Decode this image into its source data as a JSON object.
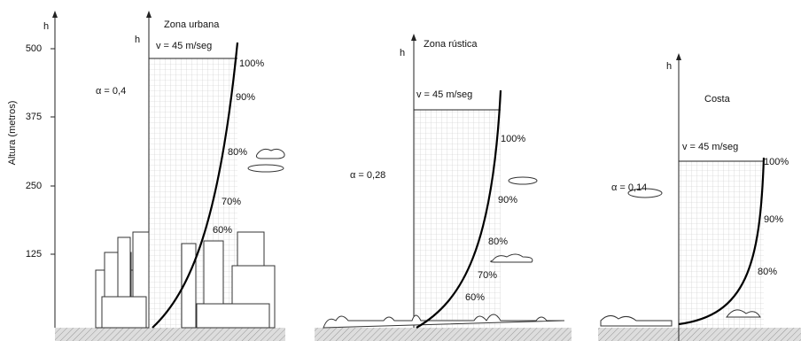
{
  "y_axis": {
    "symbol": "h",
    "label": "Altura (metros)",
    "ticks": [
      "500",
      "375",
      "250",
      "125"
    ]
  },
  "panels": [
    {
      "title": "Zona urbana",
      "axis_symbol": "h",
      "speed": "v = 45 m/seg",
      "alpha": "α = 0,4",
      "percentages": [
        "100%",
        "90%",
        "80%",
        "70%",
        "60%"
      ]
    },
    {
      "title": "Zona rústica",
      "axis_symbol": "h",
      "speed": "v = 45 m/seg",
      "alpha": "α = 0,28",
      "percentages": [
        "100%",
        "90%",
        "80%",
        "70%",
        "60%"
      ]
    },
    {
      "title": "Costa",
      "axis_symbol": "h",
      "speed": "v = 45 m/seg",
      "alpha": "α = 0,14",
      "percentages": [
        "100%",
        "90%",
        "80%"
      ]
    }
  ]
}
